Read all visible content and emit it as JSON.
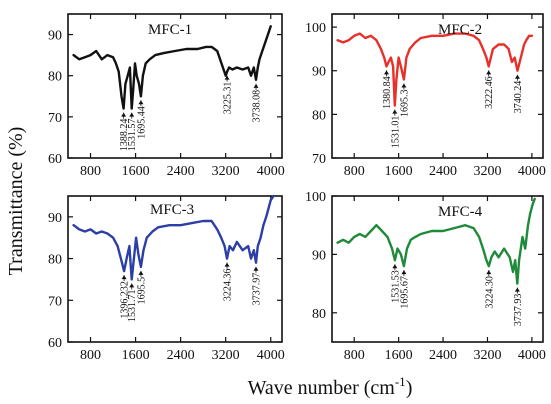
{
  "figure": {
    "ylabel": "Transmittance (%)",
    "xlabel_main": "Wave number (cm",
    "xlabel_sup": "-1",
    "xlabel_close": ")"
  },
  "chart_data": [
    {
      "type": "line",
      "title": "MFC-1",
      "color": "#111111",
      "xlim": [
        400,
        4200
      ],
      "ylim": [
        60,
        95
      ],
      "xticks": [
        800,
        1600,
        2400,
        3200,
        4000
      ],
      "yticks": [
        60,
        70,
        80,
        90
      ],
      "series": [
        {
          "x": [
            500,
            600,
            700,
            800,
            900,
            1000,
            1100,
            1200,
            1250,
            1300,
            1350,
            1388,
            1420,
            1460,
            1500,
            1532,
            1560,
            1590,
            1620,
            1660,
            1695,
            1730,
            1780,
            1850,
            1950,
            2100,
            2300,
            2500,
            2700,
            2850,
            2950,
            3050,
            3100,
            3150,
            3200,
            3225,
            3260,
            3320,
            3400,
            3500,
            3600,
            3650,
            3700,
            3739,
            3770,
            3800,
            3850,
            3900,
            3950,
            4000
          ],
          "y": [
            85,
            84,
            84.5,
            85,
            86,
            84,
            85,
            84.5,
            83,
            81,
            75,
            72,
            78,
            80,
            82,
            72,
            77,
            83,
            80,
            78,
            75,
            80,
            83,
            84,
            85,
            85.5,
            86,
            86.5,
            86.5,
            87,
            87,
            86,
            84,
            82,
            80,
            81,
            82,
            81.5,
            82,
            81.5,
            82,
            80,
            82,
            79,
            82,
            84,
            86,
            88,
            90,
            92
          ]
        }
      ],
      "annotations": [
        "1388.24",
        "1531.57",
        "1695.44",
        "3225.31",
        "3738.08"
      ],
      "annotation_x": [
        1388,
        1532,
        1695,
        3225,
        3739
      ]
    },
    {
      "type": "line",
      "title": "MFC-2",
      "color": "#e8302a",
      "xlim": [
        400,
        4200
      ],
      "ylim": [
        70,
        103
      ],
      "xticks": [
        800,
        1600,
        2400,
        3200,
        4000
      ],
      "yticks": [
        70,
        80,
        90,
        100
      ],
      "series": [
        {
          "x": [
            500,
            600,
            700,
            800,
            900,
            1000,
            1100,
            1200,
            1280,
            1340,
            1381,
            1420,
            1460,
            1500,
            1531,
            1560,
            1600,
            1640,
            1695,
            1740,
            1800,
            1900,
            2000,
            2200,
            2400,
            2600,
            2800,
            2950,
            3050,
            3120,
            3180,
            3222,
            3260,
            3300,
            3400,
            3500,
            3580,
            3640,
            3690,
            3740,
            3780,
            3820,
            3860,
            3900,
            3950,
            4000
          ],
          "y": [
            97,
            96.5,
            97,
            98,
            98.5,
            97.5,
            98,
            97,
            95,
            93,
            91,
            92,
            93,
            91,
            82,
            88,
            93,
            91,
            88,
            93,
            95,
            96.5,
            97.5,
            98,
            98,
            98.5,
            98.5,
            98,
            97,
            95,
            93,
            91,
            93,
            95,
            96,
            96,
            95,
            92,
            93,
            90,
            92,
            94,
            96,
            97,
            98,
            98
          ]
        }
      ],
      "annotations": [
        "1380.84",
        "1531.01",
        "1695.3",
        "3222.46",
        "3740.24"
      ],
      "annotation_x": [
        1381,
        1531,
        1695,
        3222,
        3740
      ]
    },
    {
      "type": "line",
      "title": "MFC-3",
      "color": "#2b3fa6",
      "xlim": [
        400,
        4200
      ],
      "ylim": [
        60,
        95
      ],
      "xticks": [
        800,
        1600,
        2400,
        3200,
        4000
      ],
      "yticks": [
        60,
        70,
        80,
        90
      ],
      "series": [
        {
          "x": [
            500,
            600,
            700,
            800,
            900,
            1000,
            1100,
            1200,
            1280,
            1340,
            1396,
            1440,
            1490,
            1532,
            1570,
            1610,
            1650,
            1695,
            1740,
            1800,
            1900,
            2000,
            2200,
            2400,
            2600,
            2800,
            2950,
            3050,
            3120,
            3180,
            3224,
            3270,
            3330,
            3400,
            3500,
            3600,
            3650,
            3700,
            3738,
            3770,
            3820,
            3870,
            3920,
            3960,
            4000,
            4050
          ],
          "y": [
            88,
            87,
            86.5,
            87,
            86,
            86.5,
            86,
            85,
            83,
            80,
            77,
            80,
            83,
            75,
            80,
            85,
            81,
            78,
            82,
            85,
            86.5,
            87.5,
            88,
            88,
            88.5,
            89,
            89,
            87,
            85,
            83,
            80,
            83,
            82,
            84,
            82,
            83,
            80,
            82,
            79,
            83,
            85,
            88,
            90,
            92,
            94,
            95
          ]
        }
      ],
      "annotations": [
        "1396.232",
        "1531.71",
        "1695.5",
        "3224.36",
        "3737.97"
      ],
      "annotation_x": [
        1396,
        1532,
        1695,
        3224,
        3738
      ]
    },
    {
      "type": "line",
      "title": "MFC-4",
      "color": "#1f8a3a",
      "xlim": [
        400,
        4200
      ],
      "ylim": [
        75,
        100
      ],
      "xticks": [
        800,
        1600,
        2400,
        3200,
        4000
      ],
      "yticks": [
        80,
        90,
        100
      ],
      "series": [
        {
          "x": [
            500,
            600,
            700,
            800,
            900,
            1000,
            1100,
            1200,
            1300,
            1400,
            1480,
            1532,
            1580,
            1640,
            1695,
            1750,
            1820,
            1900,
            2000,
            2200,
            2400,
            2600,
            2800,
            2950,
            3050,
            3120,
            3180,
            3224,
            3270,
            3330,
            3400,
            3500,
            3600,
            3660,
            3700,
            3738,
            3770,
            3830,
            3880,
            3930,
            3970,
            4010,
            4050
          ],
          "y": [
            92,
            92.5,
            92,
            93,
            93.5,
            93,
            94,
            95,
            94,
            93,
            91,
            89,
            91,
            90,
            88,
            91,
            92.5,
            93,
            93.5,
            94,
            94,
            94.5,
            95,
            94.5,
            93,
            91,
            89,
            88,
            89.5,
            90.5,
            89.5,
            91,
            89.5,
            87,
            89,
            85,
            89,
            93,
            91,
            95,
            97,
            98.5,
            99.5
          ]
        }
      ],
      "annotations": [
        "1531.53",
        "1695.67",
        "3224.30",
        "3737.93"
      ],
      "annotation_x": [
        1532,
        1695,
        3224,
        3738
      ]
    }
  ]
}
